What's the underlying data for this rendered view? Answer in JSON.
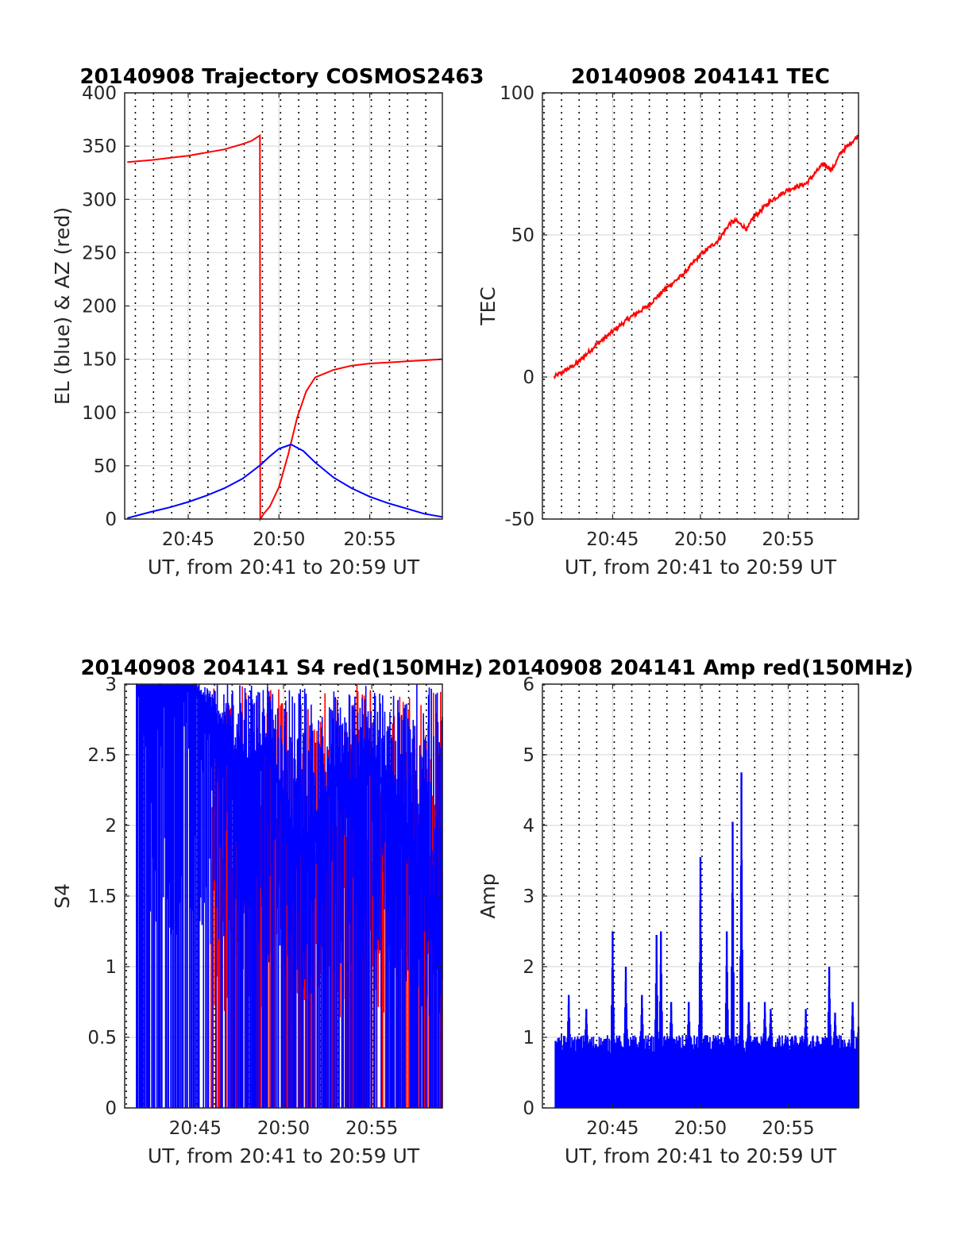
{
  "figure": {
    "background": "#ffffff",
    "grid_color": "#dcdcdc",
    "vline_color": "#000000",
    "red": "#ff0000",
    "blue": "#0000ff"
  },
  "chart_data": [
    {
      "type": "line",
      "title": "20140908 Trajectory COSMOS2463",
      "xlabel": "UT, from 20:41 to 20:59 UT",
      "ylabel": "EL (blue) & AZ (red)",
      "xlim": [
        "20:41:30",
        "20:59:00"
      ],
      "ylim": [
        0,
        400
      ],
      "xticks": [
        "20:45",
        "20:50",
        "20:55"
      ],
      "yticks": [
        "0",
        "50",
        "100",
        "150",
        "200",
        "250",
        "300",
        "350",
        "400"
      ],
      "grid": true,
      "minute_markers": "dotted vertical line every minute",
      "series": [
        {
          "color": "red",
          "x": [
            "20:41:40",
            "20:43:00",
            "20:44:00",
            "20:45:00",
            "20:46:00",
            "20:47:00",
            "20:48:00",
            "20:48:30",
            "20:48:57",
            "20:48:58",
            "20:49:10",
            "20:49:30",
            "20:50:00",
            "20:50:30",
            "20:51:00",
            "20:51:30",
            "20:52:00",
            "20:53:00",
            "20:54:00",
            "20:55:00",
            "20:56:00",
            "20:57:00",
            "20:58:00",
            "20:59:00"
          ],
          "values": [
            335,
            337,
            339,
            341,
            344,
            347,
            352,
            355,
            360,
            0,
            5,
            12,
            30,
            60,
            95,
            120,
            133,
            140,
            144,
            146,
            147,
            148,
            149,
            150
          ]
        },
        {
          "color": "blue",
          "x": [
            "20:41:40",
            "20:43:00",
            "20:44:00",
            "20:45:00",
            "20:46:00",
            "20:47:00",
            "20:48:00",
            "20:49:00",
            "20:49:30",
            "20:50:00",
            "20:50:40",
            "20:51:20",
            "20:52:00",
            "20:53:00",
            "20:54:00",
            "20:55:00",
            "20:56:00",
            "20:57:00",
            "20:58:00",
            "20:59:00"
          ],
          "values": [
            1,
            7,
            11,
            16,
            22,
            29,
            38,
            51,
            59,
            66,
            70,
            64,
            53,
            39,
            29,
            21,
            15,
            10,
            5,
            2
          ]
        }
      ]
    },
    {
      "type": "line",
      "title": "20140908 204141 TEC",
      "xlabel": "UT, from 20:41 to 20:59 UT",
      "ylabel": "TEC",
      "xlim": [
        "20:41:00",
        "20:59:00"
      ],
      "ylim": [
        -50,
        100
      ],
      "xticks": [
        "20:45",
        "20:50",
        "20:55"
      ],
      "yticks": [
        "-50",
        "0",
        "50",
        "100"
      ],
      "grid": true,
      "minute_markers": "dotted vertical line every minute",
      "series": [
        {
          "color": "red",
          "x": [
            "20:41:40",
            "20:42:30",
            "20:43:00",
            "20:44:00",
            "20:45:00",
            "20:46:00",
            "20:47:00",
            "20:48:00",
            "20:49:00",
            "20:50:00",
            "20:51:00",
            "20:51:40",
            "20:52:00",
            "20:52:40",
            "20:53:00",
            "20:54:00",
            "20:55:00",
            "20:56:00",
            "20:57:00",
            "20:57:30",
            "20:58:00",
            "20:59:00"
          ],
          "values": [
            0,
            3,
            5,
            11,
            16,
            21,
            25,
            31,
            36,
            43,
            48,
            54,
            55,
            52,
            56,
            62,
            66,
            68,
            75,
            73,
            79,
            85
          ]
        }
      ]
    },
    {
      "type": "line",
      "title": "20140908 204141 S4 red(150MHz)",
      "xlabel": "UT, from 20:41 to 20:59 UT",
      "ylabel": "S4",
      "xlim": [
        "20:41:00",
        "20:59:00"
      ],
      "ylim": [
        0,
        3
      ],
      "xticks": [
        "20:45",
        "20:50",
        "20:55"
      ],
      "yticks": [
        "0",
        "0.5",
        "1",
        "1.5",
        "2",
        "2.5",
        "3"
      ],
      "grid": true,
      "minute_markers": "dotted vertical line every minute",
      "series": [
        {
          "color": "red",
          "x": [
            "20:45:54",
            "20:46:30",
            "20:47:30",
            "20:48:30",
            "20:49:30",
            "20:50:30",
            "20:51:00",
            "20:51:30",
            "20:52:00",
            "20:53:00",
            "20:54:00",
            "20:55:00",
            "20:56:00",
            "20:57:00",
            "20:58:00",
            "20:59:00"
          ],
          "values": [
            1.7,
            1.5,
            1.4,
            1.6,
            1.8,
            1.7,
            1.8,
            1.9,
            1.7,
            1.5,
            1.8,
            1.6,
            1.7,
            1.7,
            1.5,
            1.45
          ]
        },
        {
          "color": "blue",
          "x": [
            "20:41:40",
            "20:43:00",
            "20:44:00",
            "20:45:00",
            "20:46:00",
            "20:47:00",
            "20:48:00",
            "20:49:00",
            "20:50:00",
            "20:51:00",
            "20:52:00",
            "20:53:00",
            "20:54:00",
            "20:55:00",
            "20:56:00",
            "20:57:00",
            "20:58:00",
            "20:59:00"
          ],
          "values": [
            3,
            3,
            3,
            3,
            2.8,
            2.5,
            2.4,
            2.6,
            2.2,
            1.8,
            2.1,
            2.4,
            2.3,
            2.5,
            2.2,
            2.0,
            1.5,
            1.5
          ]
        }
      ]
    },
    {
      "type": "line",
      "title": "20140908 204141 Amp red(150MHz)",
      "xlabel": "UT, from 20:41 to 20:59 UT",
      "ylabel": "Amp",
      "xlim": [
        "20:41:00",
        "20:59:00"
      ],
      "ylim": [
        0,
        6
      ],
      "xticks": [
        "20:45",
        "20:50",
        "20:55"
      ],
      "yticks": [
        "0",
        "1",
        "2",
        "3",
        "4",
        "5",
        "6"
      ],
      "grid": true,
      "minute_markers": "dotted vertical line every minute",
      "series": [
        {
          "color": "blue",
          "baseline": 0.9,
          "x": [
            "20:41:45",
            "20:42:30",
            "20:43:30",
            "20:45:00",
            "20:45:45",
            "20:46:40",
            "20:47:30",
            "20:47:45",
            "20:48:20",
            "20:49:20",
            "20:50:00",
            "20:51:30",
            "20:51:50",
            "20:52:20",
            "20:52:45",
            "20:53:40",
            "20:54:00",
            "20:56:00",
            "20:57:20",
            "20:57:40",
            "20:58:40",
            "20:59:00"
          ],
          "values": [
            0.95,
            1.6,
            1.4,
            2.5,
            2.0,
            1.6,
            2.45,
            2.5,
            1.5,
            1.5,
            3.55,
            2.5,
            4.05,
            4.75,
            1.5,
            1.5,
            1.4,
            1.4,
            2.0,
            1.35,
            1.5,
            1.15
          ]
        }
      ]
    }
  ]
}
